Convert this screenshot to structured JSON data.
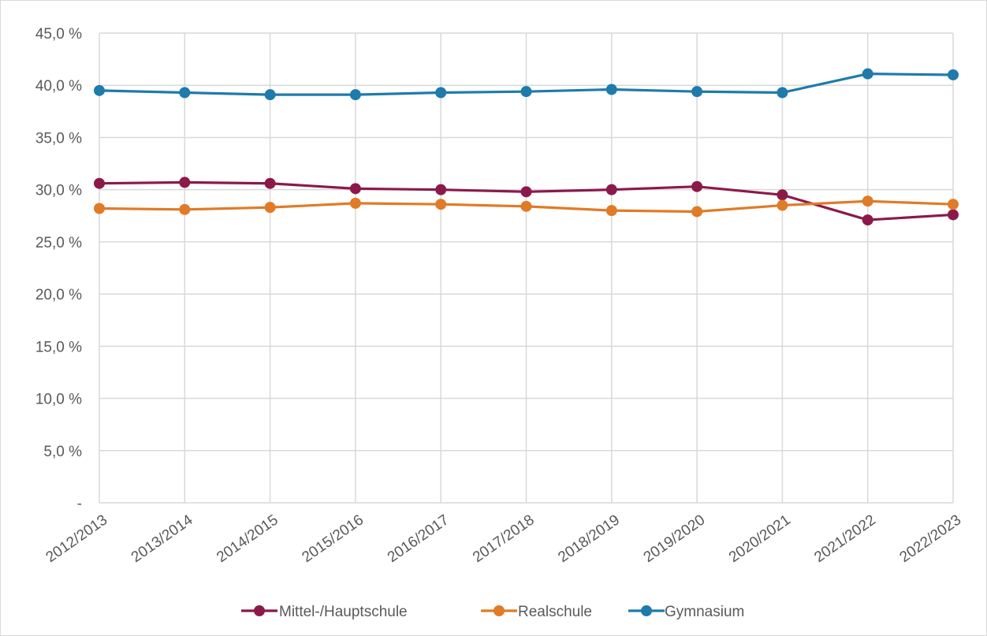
{
  "chart_data": {
    "type": "line",
    "categories": [
      "2012/2013",
      "2013/2014",
      "2014/2015",
      "2015/2016",
      "2016/2017",
      "2017/2018",
      "2018/2019",
      "2019/2020",
      "2020/2021",
      "2021/2022",
      "2022/2023"
    ],
    "y_ticks": [
      {
        "value": 0,
        "label": "-"
      },
      {
        "value": 5,
        "label": "5,0 %"
      },
      {
        "value": 10,
        "label": "10,0 %"
      },
      {
        "value": 15,
        "label": "15,0 %"
      },
      {
        "value": 20,
        "label": "20,0 %"
      },
      {
        "value": 25,
        "label": "25,0 %"
      },
      {
        "value": 30,
        "label": "30,0 %"
      },
      {
        "value": 35,
        "label": "35,0 %"
      },
      {
        "value": 40,
        "label": "40,0 %"
      },
      {
        "value": 45,
        "label": "45,0 %"
      }
    ],
    "ylim": [
      0,
      45
    ],
    "grid": "vertical and horizontal gridlines",
    "legend_position": "bottom",
    "series": [
      {
        "name": "Mittel-/Hauptschule",
        "color": "#8b1a4a",
        "values": [
          30.6,
          30.7,
          30.6,
          30.1,
          30.0,
          29.8,
          30.0,
          30.3,
          29.5,
          27.1,
          27.6
        ]
      },
      {
        "name": "Realschule",
        "color": "#e07b28",
        "values": [
          28.2,
          28.1,
          28.3,
          28.7,
          28.6,
          28.4,
          28.0,
          27.9,
          28.5,
          28.9,
          28.6
        ]
      },
      {
        "name": "Gymnasium",
        "color": "#1f7bab",
        "values": [
          39.5,
          39.3,
          39.1,
          39.1,
          39.3,
          39.4,
          39.6,
          39.4,
          39.3,
          41.1,
          41.0
        ]
      }
    ]
  }
}
